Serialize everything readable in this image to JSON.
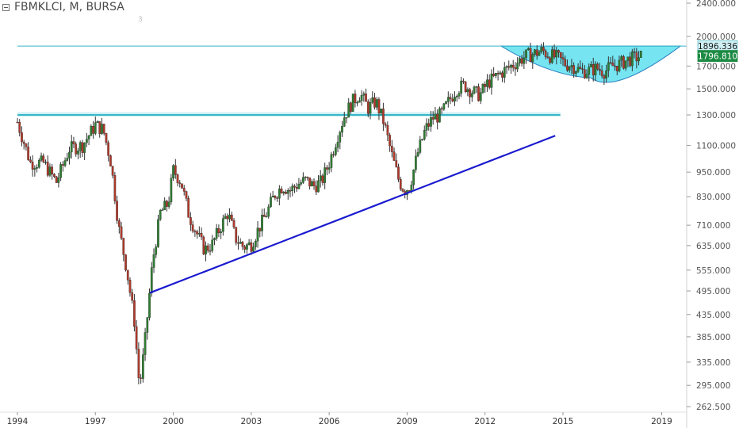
{
  "header": {
    "symbol_line": "FBMKLCI, M, BURSA",
    "sub_label": "3"
  },
  "colors": {
    "up": "#2e7d32",
    "down": "#b0392b",
    "wick": "#333333",
    "trendline": "#1a1ad0",
    "level_line": "#37b7c8",
    "cup_fill": "#5ee0ee",
    "badge_top": "#cfeff3",
    "badge_current": "#1d8a43"
  },
  "chart_data": {
    "type": "line",
    "subtype": "candlestick",
    "title": "FBMKLCI, M, BURSA",
    "y_scale": "log",
    "ylim": [
      250,
      2500
    ],
    "xlim": [
      1994.0,
      2020.5
    ],
    "y_ticks": [
      "2400.000",
      "2000.000",
      "1700.000",
      "1500.000",
      "1300.000",
      "1100.000",
      "950.000",
      "830.000",
      "710.000",
      "635.000",
      "555.000",
      "495.000",
      "435.000",
      "385.000",
      "335.000",
      "295.000",
      "262.500"
    ],
    "y_tick_values": [
      2400,
      2000,
      1700,
      1500,
      1300,
      1100,
      950,
      830,
      710,
      635,
      555,
      495,
      435,
      385,
      335,
      295,
      262.5
    ],
    "x_ticks": [
      "1994",
      "1997",
      "2000",
      "2003",
      "2006",
      "2009",
      "2012",
      "2015",
      "2019"
    ],
    "x_tick_values": [
      1994,
      1997,
      2000,
      2003,
      2006,
      2009,
      2012,
      2015,
      2018.8
    ],
    "price_badges": [
      {
        "label": "1896.336",
        "value": 1896.336,
        "kind": "resistance"
      },
      {
        "label": "1796.810",
        "value": 1796.81,
        "kind": "last"
      }
    ],
    "series": [
      {
        "x": [
          1994.0,
          1994.5,
          1995.0,
          1995.5,
          1996.0,
          1996.5,
          1997.0,
          1997.3,
          1997.6,
          1997.9,
          1998.2,
          1998.5,
          1998.7,
          1998.9,
          1999.2,
          1999.5,
          1999.8,
          2000.0,
          2000.3,
          2000.6,
          2000.9,
          2001.2,
          2001.5,
          2001.8,
          2002.1,
          2002.4,
          2002.7,
          2003.0,
          2003.3,
          2003.6,
          2003.9,
          2004.2,
          2004.5,
          2004.8,
          2005.1,
          2005.4,
          2005.7,
          2006.0,
          2006.3,
          2006.6,
          2006.9,
          2007.2,
          2007.5,
          2007.8,
          2008.1,
          2008.4,
          2008.7,
          2008.9,
          2009.1,
          2009.4,
          2009.7,
          2010.0,
          2010.3,
          2010.6,
          2010.9,
          2011.2,
          2011.5,
          2011.8,
          2012.1,
          2012.4,
          2012.7,
          2013.0,
          2013.3,
          2013.6,
          2013.9,
          2014.2,
          2014.5,
          2014.8,
          2015.1,
          2015.4,
          2015.7,
          2016.0,
          2016.3,
          2016.6,
          2016.9,
          2017.2,
          2017.5,
          2017.8,
          2018.0
        ],
        "values": [
          1250,
          1000,
          1000,
          900,
          1080,
          1100,
          1230,
          1200,
          1000,
          700,
          560,
          420,
          290,
          370,
          580,
          760,
          800,
          960,
          900,
          750,
          680,
          620,
          640,
          700,
          760,
          660,
          630,
          640,
          700,
          760,
          840,
          880,
          860,
          890,
          910,
          880,
          900,
          1000,
          1150,
          1300,
          1400,
          1460,
          1350,
          1400,
          1250,
          1050,
          900,
          860,
          880,
          1050,
          1200,
          1280,
          1300,
          1400,
          1500,
          1530,
          1480,
          1450,
          1550,
          1600,
          1650,
          1700,
          1750,
          1800,
          1820,
          1850,
          1800,
          1780,
          1720,
          1700,
          1650,
          1660,
          1680,
          1650,
          1700,
          1720,
          1760,
          1780,
          1796.81
        ]
      }
    ],
    "lines": [
      {
        "name": "",
        "kind": "support-trendline",
        "points": [
          [
            1999.1,
            490
          ],
          [
            2014.7,
            1160
          ]
        ]
      },
      {
        "name": "",
        "kind": "horizontal",
        "y": 1300,
        "x_from": 1994.0,
        "x_to": 2014.9
      },
      {
        "name": "",
        "kind": "horizontal",
        "y": 1896.336,
        "x_from": 1994.0,
        "x_to": 2020.5
      }
    ],
    "grid": false,
    "legend": "none"
  }
}
